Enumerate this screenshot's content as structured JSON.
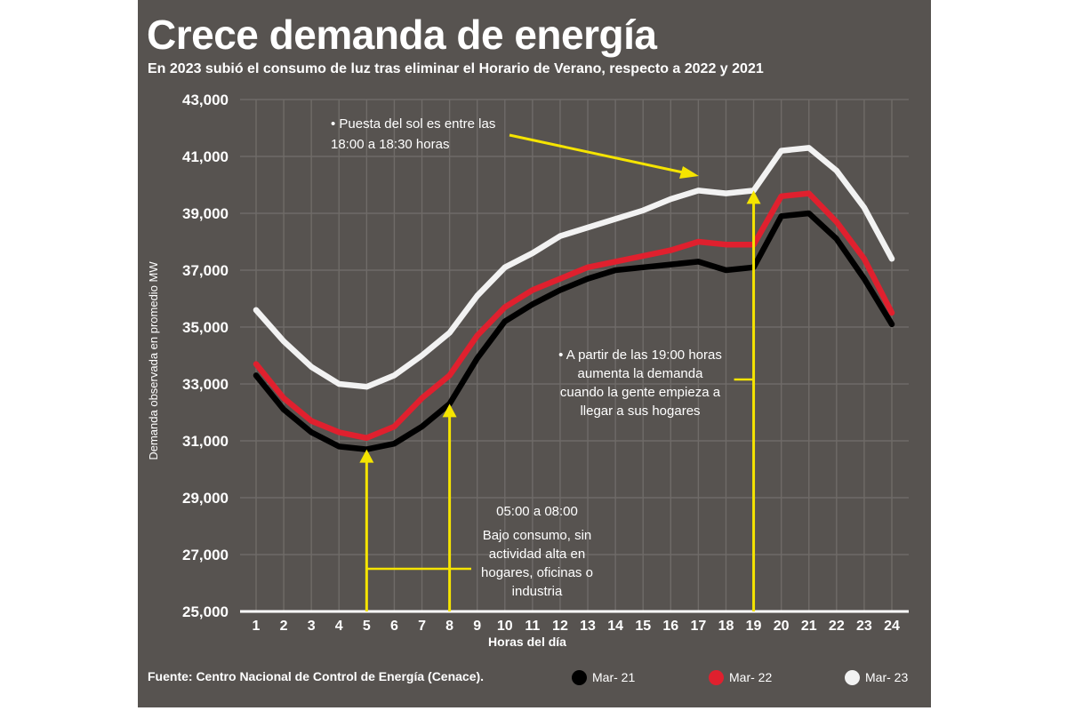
{
  "title": "Crece demanda de energía",
  "subtitle": "En 2023 subió el consumo de luz tras eliminar el Horario de Verano, respecto a 2022 y 2021",
  "source": "Fuente: Centro Nacional de Control de Energía (Cenace).",
  "colors": {
    "background": "#575350",
    "accent": "#f5e400",
    "mar21": "#000000",
    "mar22": "#e0202e",
    "mar23": "#f2f2f2"
  },
  "annotations": {
    "sunset": [
      "• Puesta del sol es entre las",
      "18:00 a 18:30 horas"
    ],
    "evening": [
      "• A partir de las 19:00 horas",
      "aumenta la demanda",
      "cuando la gente empieza a",
      "llegar a sus hogares"
    ],
    "morning_range": "05:00 a 08:00",
    "morning": [
      "Bajo consumo, sin",
      "actividad alta en",
      "hogares, oficinas o",
      "industria"
    ]
  },
  "chart_data": {
    "type": "line",
    "xlabel": "Horas del día",
    "ylabel": "Demanda observada en promedio MW",
    "x": [
      1,
      2,
      3,
      4,
      5,
      6,
      7,
      8,
      9,
      10,
      11,
      12,
      13,
      14,
      15,
      16,
      17,
      18,
      19,
      20,
      21,
      22,
      23,
      24
    ],
    "ylim": [
      25000,
      43000
    ],
    "yticks": [
      25000,
      27000,
      29000,
      31000,
      33000,
      35000,
      37000,
      39000,
      41000,
      43000
    ],
    "ytick_labels": [
      "25,000",
      "27,000",
      "29,000",
      "31,000",
      "33,000",
      "35,000",
      "37,000",
      "39,000",
      "41,000",
      "43,000"
    ],
    "grid": true,
    "legend_position": "bottom",
    "series": [
      {
        "name": "Mar- 21",
        "color": "#000000",
        "values": [
          33300,
          32100,
          31300,
          30800,
          30700,
          30900,
          31500,
          32300,
          33900,
          35200,
          35800,
          36300,
          36700,
          37000,
          37100,
          37200,
          37300,
          37000,
          37100,
          38900,
          39000,
          38100,
          36700,
          35100
        ]
      },
      {
        "name": "Mar- 22",
        "color": "#e0202e",
        "values": [
          33700,
          32500,
          31700,
          31300,
          31100,
          31500,
          32500,
          33300,
          34700,
          35700,
          36300,
          36700,
          37100,
          37300,
          37500,
          37700,
          38000,
          37900,
          37900,
          39600,
          39700,
          38700,
          37400,
          35500
        ]
      },
      {
        "name": "Mar- 23",
        "color": "#f2f2f2",
        "values": [
          35600,
          34500,
          33600,
          33000,
          32900,
          33300,
          34000,
          34800,
          36100,
          37100,
          37600,
          38200,
          38500,
          38800,
          39100,
          39500,
          39800,
          39700,
          39800,
          41200,
          41300,
          40500,
          39200,
          37400
        ]
      }
    ]
  }
}
